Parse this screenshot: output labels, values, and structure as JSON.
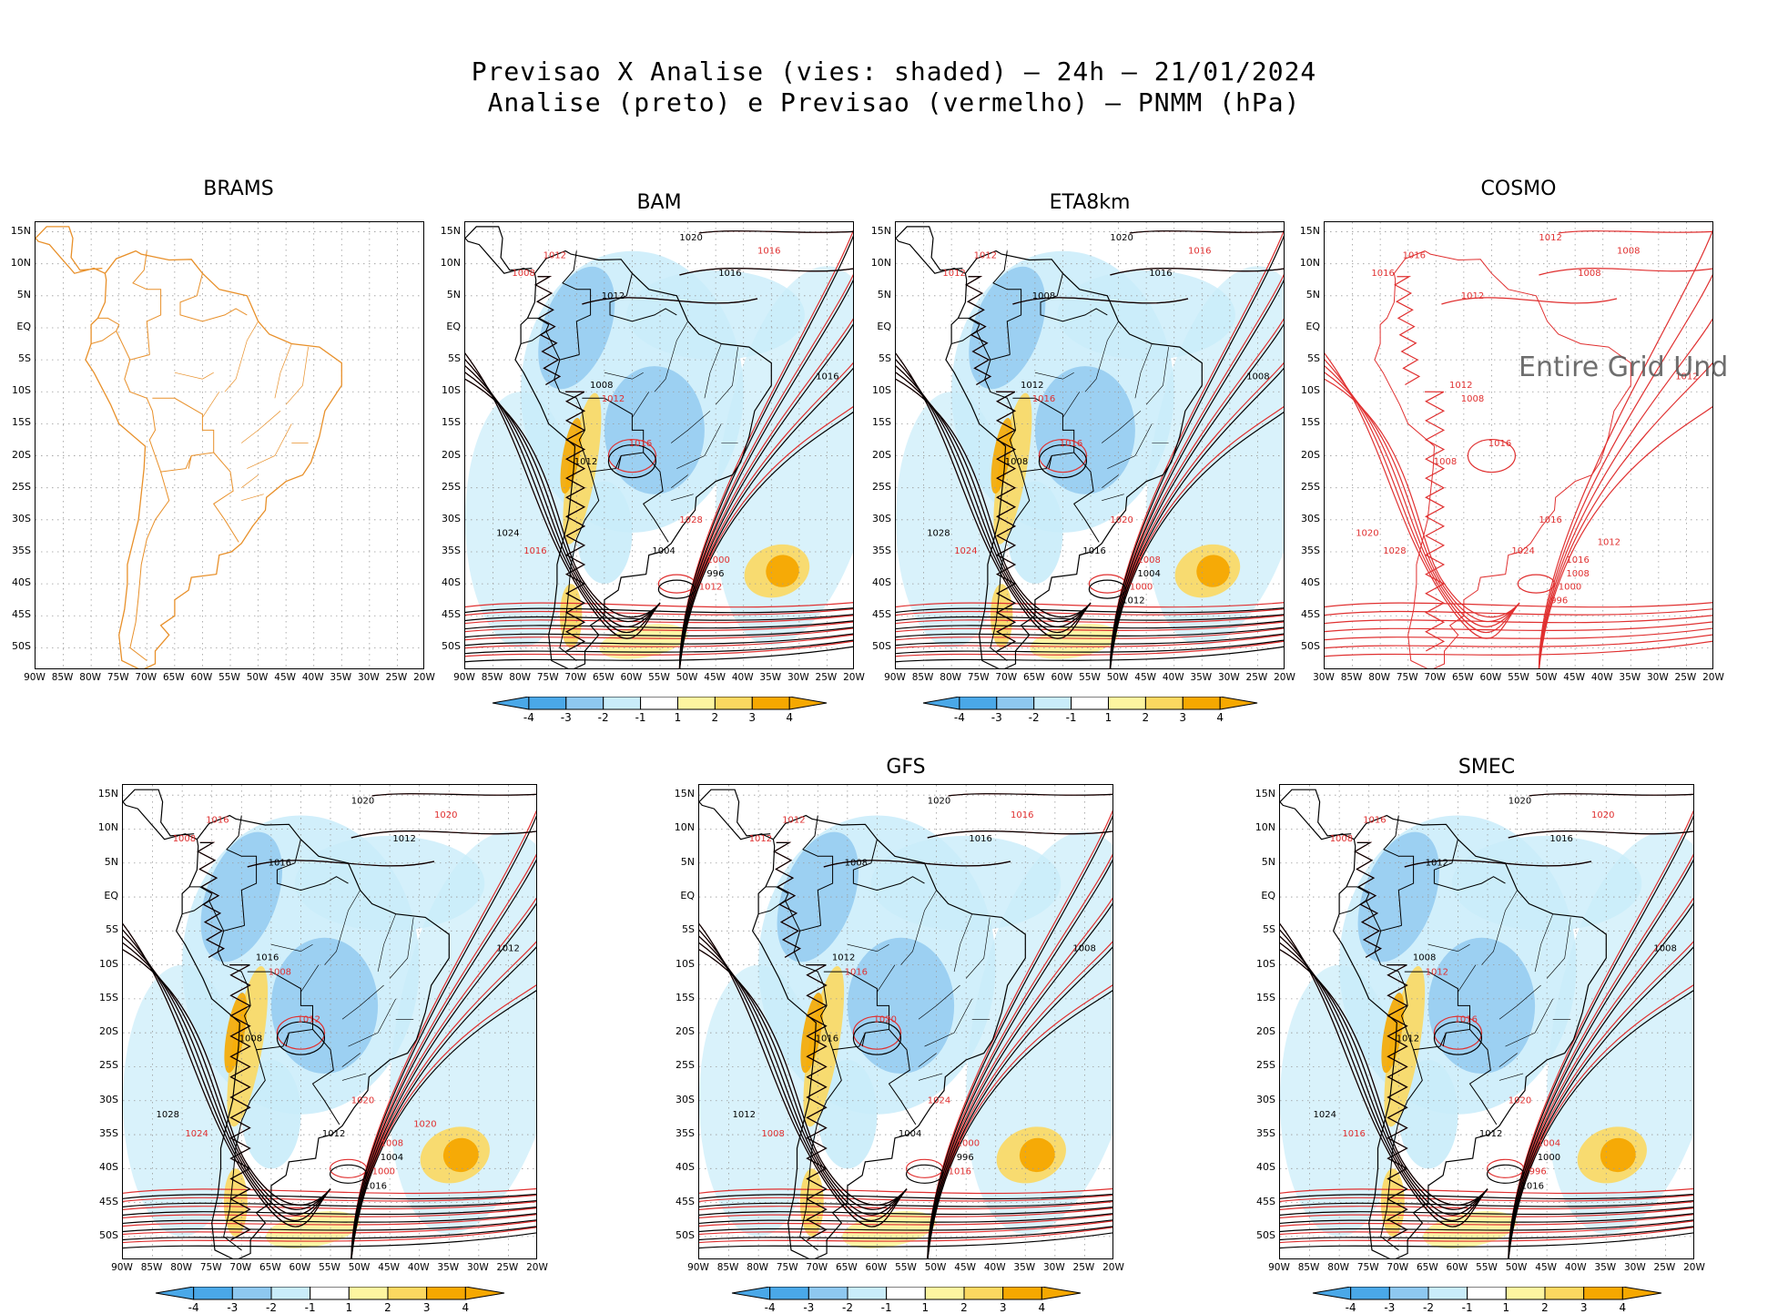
{
  "title_line1": "Previsao X Analise (vies: shaded) – 24h – 21/01/2024",
  "title_line2": "Analise (preto) e Previsao (vermelho) – PNMM (hPa)",
  "colors": {
    "analysis": "#000000",
    "forecast": "#e03030",
    "border_brams": "#e8902a",
    "neg": [
      "#4aa8e8",
      "#8ec8f0",
      "#c9ecfa"
    ],
    "pos": [
      "#fdf5a0",
      "#fbd860",
      "#f6a800"
    ]
  },
  "lat_labels": [
    "15N",
    "10N",
    "5N",
    "EQ",
    "5S",
    "10S",
    "15S",
    "20S",
    "25S",
    "30S",
    "35S",
    "40S",
    "45S",
    "50S"
  ],
  "lon_labels": [
    "90W",
    "85W",
    "80W",
    "75W",
    "70W",
    "65W",
    "60W",
    "55W",
    "50W",
    "45W",
    "40W",
    "35W",
    "30W",
    "25W",
    "20W"
  ],
  "colorbar_labels": [
    "-4",
    "-3",
    "-2",
    "-1",
    "1",
    "2",
    "3",
    "4"
  ],
  "panels": [
    {
      "id": "brams",
      "title": "BRAMS",
      "kind": "map-only"
    },
    {
      "id": "bam",
      "title": "BAM",
      "kind": "full",
      "contour_labels": [
        "1020",
        "1016",
        "1016",
        "1012",
        "1012",
        "1008",
        "1016",
        "1012",
        "1008",
        "1016",
        "1012",
        "1028",
        "1024",
        "1016",
        "1004",
        "1000",
        "996",
        "1012"
      ]
    },
    {
      "id": "eta8km",
      "title": "ETA8km",
      "kind": "full",
      "contour_labels": [
        "1020",
        "1016",
        "1016",
        "1012",
        "1008",
        "1012",
        "1008",
        "1016",
        "1012",
        "1016",
        "1008",
        "1020",
        "1028",
        "1024",
        "1016",
        "1008",
        "1004",
        "1000",
        "1012"
      ]
    },
    {
      "id": "cosmo",
      "title": "COSMO",
      "kind": "forecast-only",
      "overlay_text": "Entire Grid Und",
      "lon_first": "30W",
      "contour_labels": [
        "1012",
        "1008",
        "1008",
        "1016",
        "1012",
        "1016",
        "1012",
        "1008",
        "1012",
        "1016",
        "1008",
        "1016",
        "1020",
        "1028",
        "1024",
        "1016",
        "1008",
        "1000",
        "996",
        "1012"
      ]
    },
    {
      "id": "bottom-left",
      "title": "",
      "kind": "full",
      "contour_labels": [
        "1020",
        "1020",
        "1012",
        "1016",
        "1016",
        "1008",
        "1012",
        "1008",
        "1016",
        "1012",
        "1008",
        "1020",
        "1028",
        "1024",
        "1012",
        "1008",
        "1004",
        "1000",
        "1016",
        "1020"
      ]
    },
    {
      "id": "gfs",
      "title": "GFS",
      "kind": "full",
      "contour_labels": [
        "1020",
        "1016",
        "1016",
        "1012",
        "1008",
        "1012",
        "1008",
        "1016",
        "1012",
        "1020",
        "1016",
        "1024",
        "1012",
        "1008",
        "1004",
        "1000",
        "996",
        "1016"
      ]
    },
    {
      "id": "smec",
      "title": "SMEC",
      "kind": "full",
      "contour_labels": [
        "1020",
        "1020",
        "1016",
        "1016",
        "1012",
        "1008",
        "1008",
        "1012",
        "1008",
        "1016",
        "1012",
        "1020",
        "1024",
        "1016",
        "1012",
        "1004",
        "1000",
        "996",
        "1016"
      ]
    }
  ]
}
